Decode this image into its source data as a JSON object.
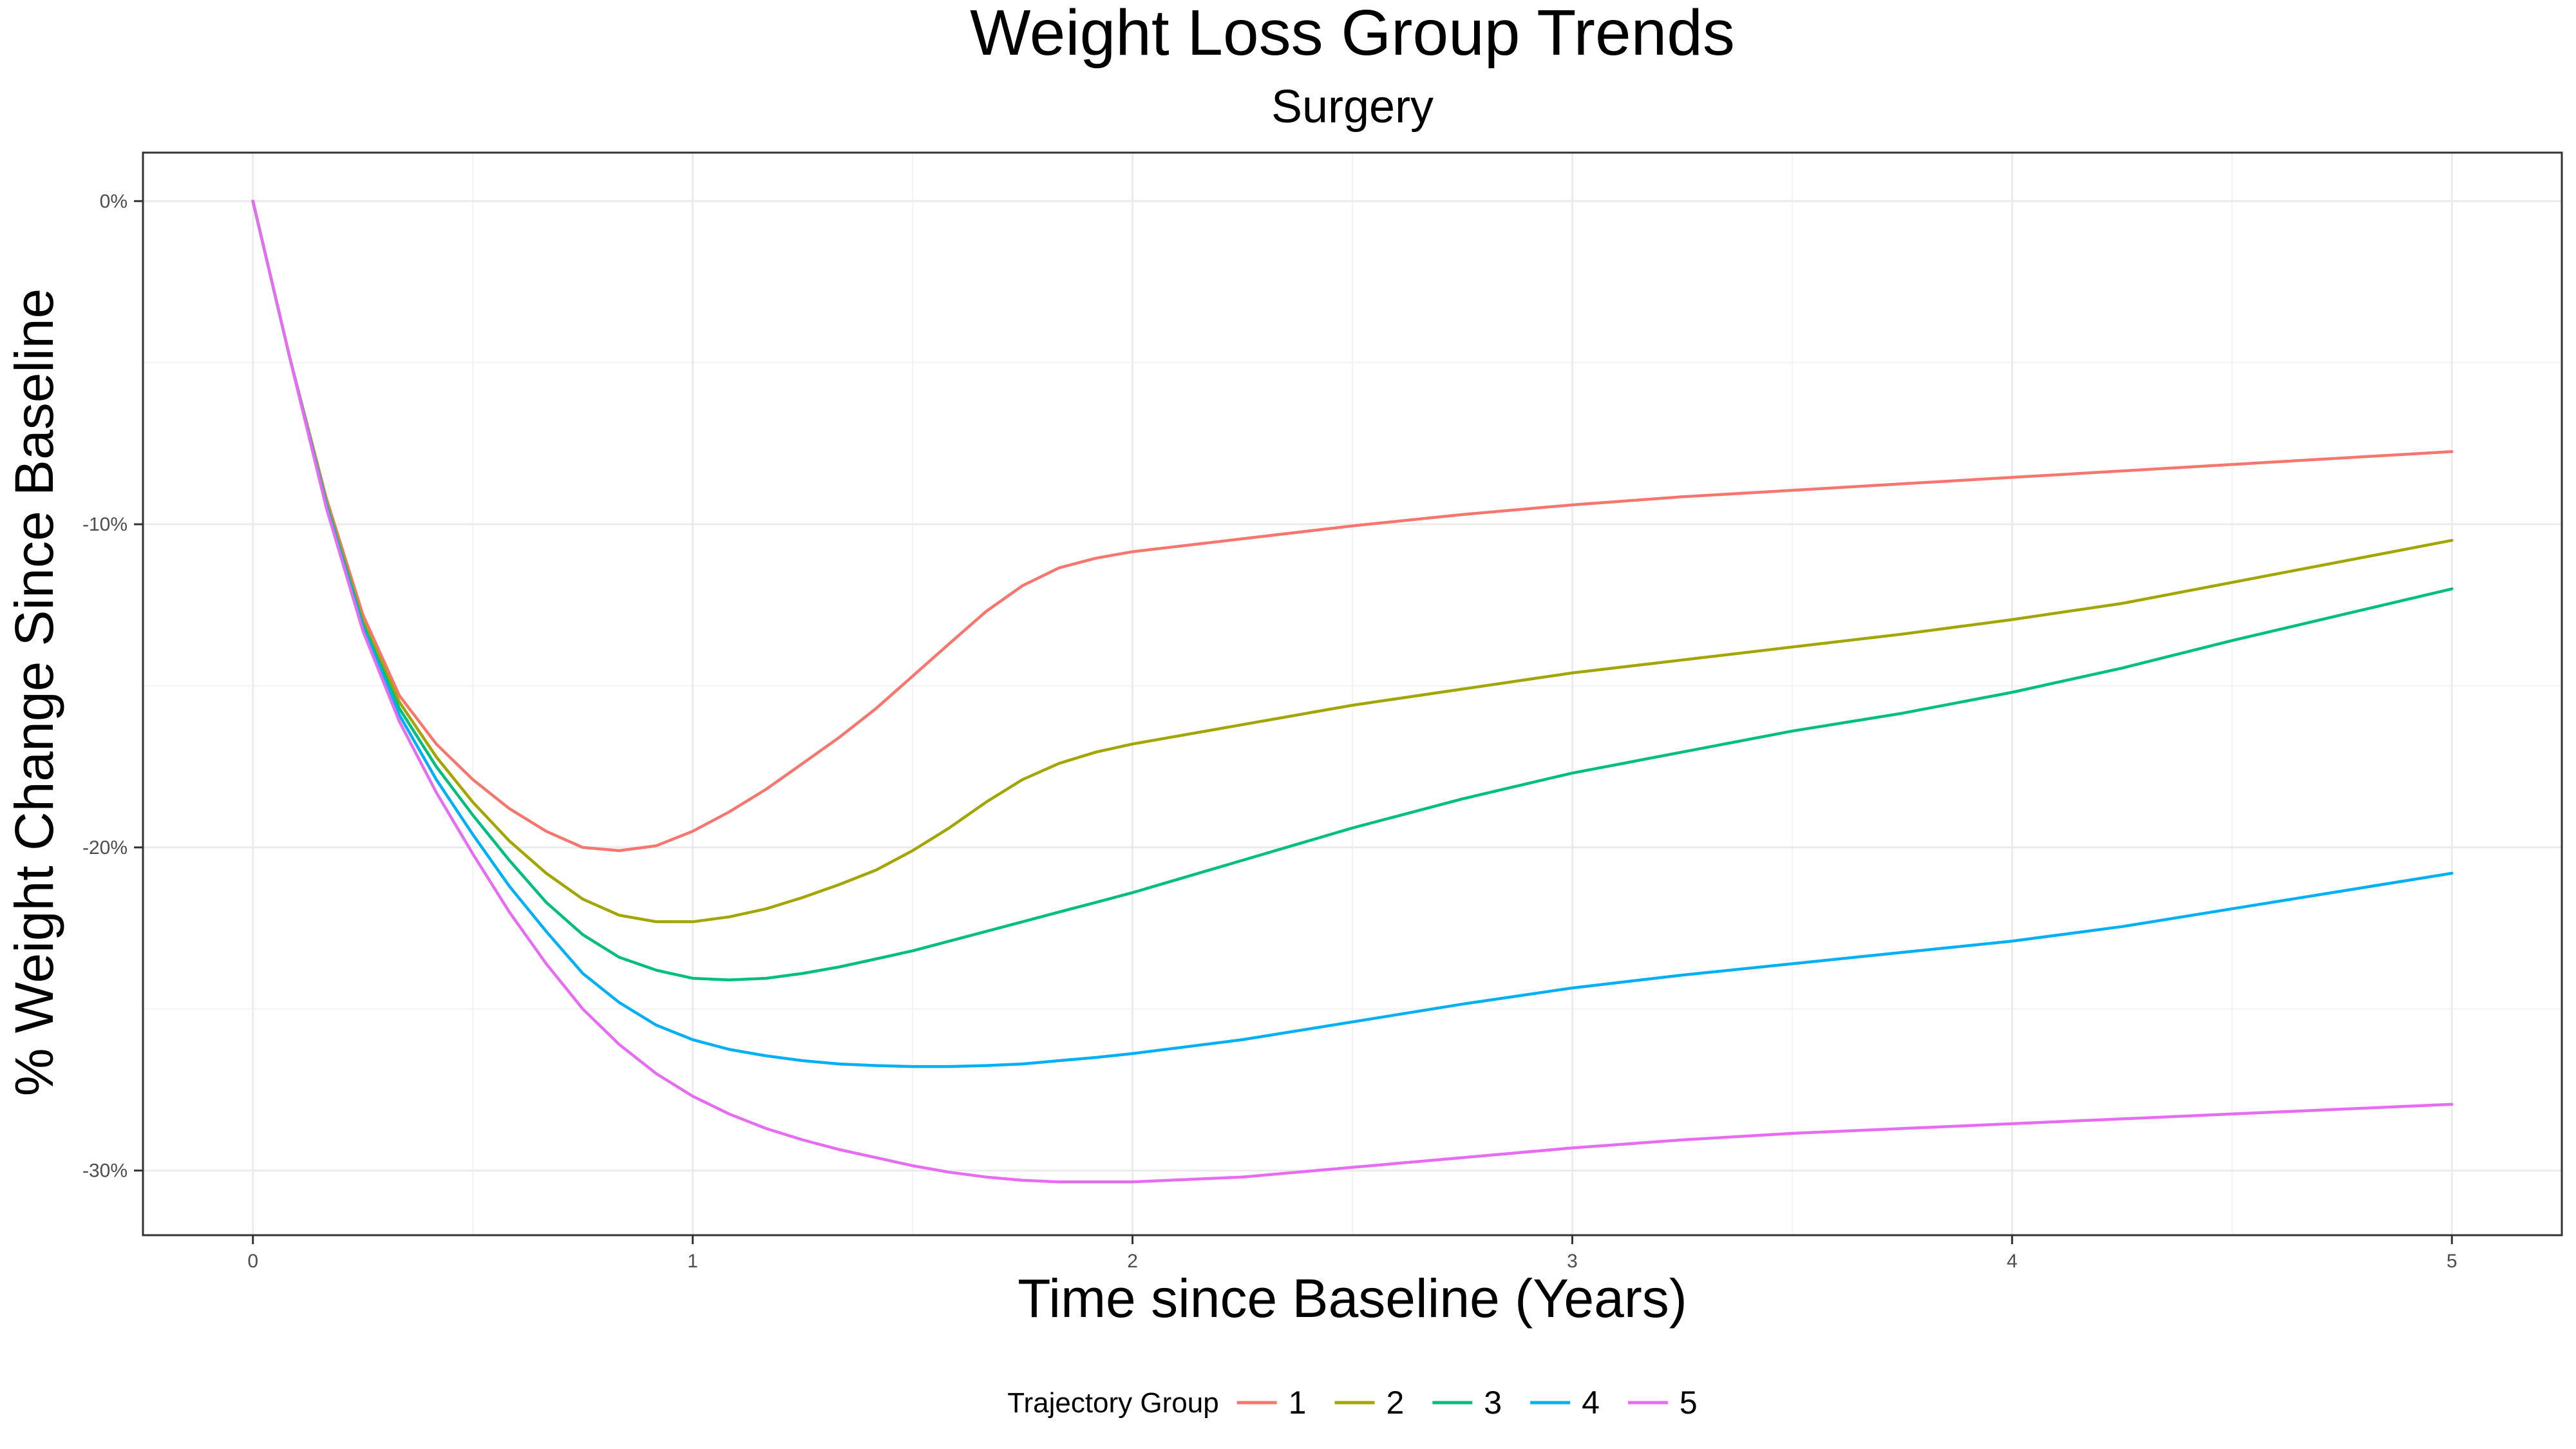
{
  "chart_data": {
    "type": "line",
    "title": "Weight Loss Group Trends",
    "subtitle": "Surgery",
    "xlabel": "Time since Baseline (Years)",
    "ylabel": "% Weight Change Since Baseline",
    "xlim": [
      -0.25,
      5.25
    ],
    "ylim": [
      -32,
      1.5
    ],
    "x_ticks": [
      0,
      1,
      2,
      3,
      4,
      5
    ],
    "x_tick_labels": [
      "0",
      "1",
      "2",
      "3",
      "4",
      "5"
    ],
    "y_ticks": [
      0,
      -10,
      -20,
      -30
    ],
    "y_tick_labels": [
      "0%",
      "-10%",
      "-20%",
      "-30%"
    ],
    "grid": true,
    "legend_position": "bottom",
    "legend_title": "Trajectory Group",
    "x": [
      0,
      0.083,
      0.167,
      0.25,
      0.333,
      0.417,
      0.5,
      0.583,
      0.667,
      0.75,
      0.833,
      0.917,
      1.0,
      1.083,
      1.167,
      1.25,
      1.333,
      1.417,
      1.5,
      1.583,
      1.667,
      1.75,
      1.833,
      1.917,
      2.0,
      2.25,
      2.5,
      2.75,
      3.0,
      3.25,
      3.5,
      3.75,
      4.0,
      4.25,
      4.5,
      4.75,
      5.0
    ],
    "series": [
      {
        "name": "1",
        "color": "#F8766D",
        "values": [
          0,
          -4.8,
          -9.2,
          -12.8,
          -15.3,
          -16.8,
          -17.9,
          -18.8,
          -19.5,
          -20.0,
          -20.1,
          -19.95,
          -19.5,
          -18.9,
          -18.2,
          -17.4,
          -16.6,
          -15.7,
          -14.7,
          -13.7,
          -12.7,
          -11.9,
          -11.35,
          -11.05,
          -10.85,
          -10.45,
          -10.05,
          -9.7,
          -9.4,
          -9.15,
          -8.95,
          -8.75,
          -8.55,
          -8.35,
          -8.15,
          -7.95,
          -7.75
        ]
      },
      {
        "name": "2",
        "color": "#A3A500",
        "values": [
          0,
          -4.8,
          -9.3,
          -13.0,
          -15.5,
          -17.2,
          -18.6,
          -19.8,
          -20.8,
          -21.6,
          -22.1,
          -22.3,
          -22.3,
          -22.15,
          -21.9,
          -21.55,
          -21.15,
          -20.7,
          -20.1,
          -19.4,
          -18.6,
          -17.9,
          -17.4,
          -17.05,
          -16.8,
          -16.2,
          -15.6,
          -15.1,
          -14.6,
          -14.2,
          -13.8,
          -13.4,
          -12.95,
          -12.45,
          -11.8,
          -11.15,
          -10.5
        ]
      },
      {
        "name": "3",
        "color": "#00BF7D",
        "values": [
          0,
          -4.8,
          -9.4,
          -13.1,
          -15.7,
          -17.5,
          -19.0,
          -20.4,
          -21.7,
          -22.7,
          -23.4,
          -23.8,
          -24.05,
          -24.1,
          -24.05,
          -23.9,
          -23.7,
          -23.45,
          -23.2,
          -22.9,
          -22.6,
          -22.3,
          -22.0,
          -21.7,
          -21.4,
          -20.4,
          -19.4,
          -18.5,
          -17.7,
          -17.05,
          -16.4,
          -15.85,
          -15.2,
          -14.45,
          -13.6,
          -12.8,
          -12.0
        ]
      },
      {
        "name": "4",
        "color": "#00B0F6",
        "values": [
          0,
          -4.8,
          -9.4,
          -13.2,
          -15.9,
          -17.9,
          -19.6,
          -21.2,
          -22.6,
          -23.9,
          -24.8,
          -25.5,
          -25.95,
          -26.25,
          -26.45,
          -26.6,
          -26.7,
          -26.75,
          -26.78,
          -26.78,
          -26.75,
          -26.7,
          -26.6,
          -26.5,
          -26.38,
          -25.95,
          -25.4,
          -24.85,
          -24.35,
          -23.95,
          -23.6,
          -23.25,
          -22.9,
          -22.45,
          -21.9,
          -21.35,
          -20.8
        ]
      },
      {
        "name": "5",
        "color": "#E76BF3",
        "values": [
          0,
          -4.8,
          -9.5,
          -13.3,
          -16.1,
          -18.3,
          -20.2,
          -22.0,
          -23.6,
          -25.0,
          -26.1,
          -27.0,
          -27.7,
          -28.25,
          -28.7,
          -29.05,
          -29.35,
          -29.6,
          -29.85,
          -30.05,
          -30.2,
          -30.3,
          -30.35,
          -30.35,
          -30.35,
          -30.2,
          -29.9,
          -29.6,
          -29.3,
          -29.05,
          -28.85,
          -28.7,
          -28.55,
          -28.4,
          -28.25,
          -28.1,
          -27.95
        ]
      }
    ]
  }
}
